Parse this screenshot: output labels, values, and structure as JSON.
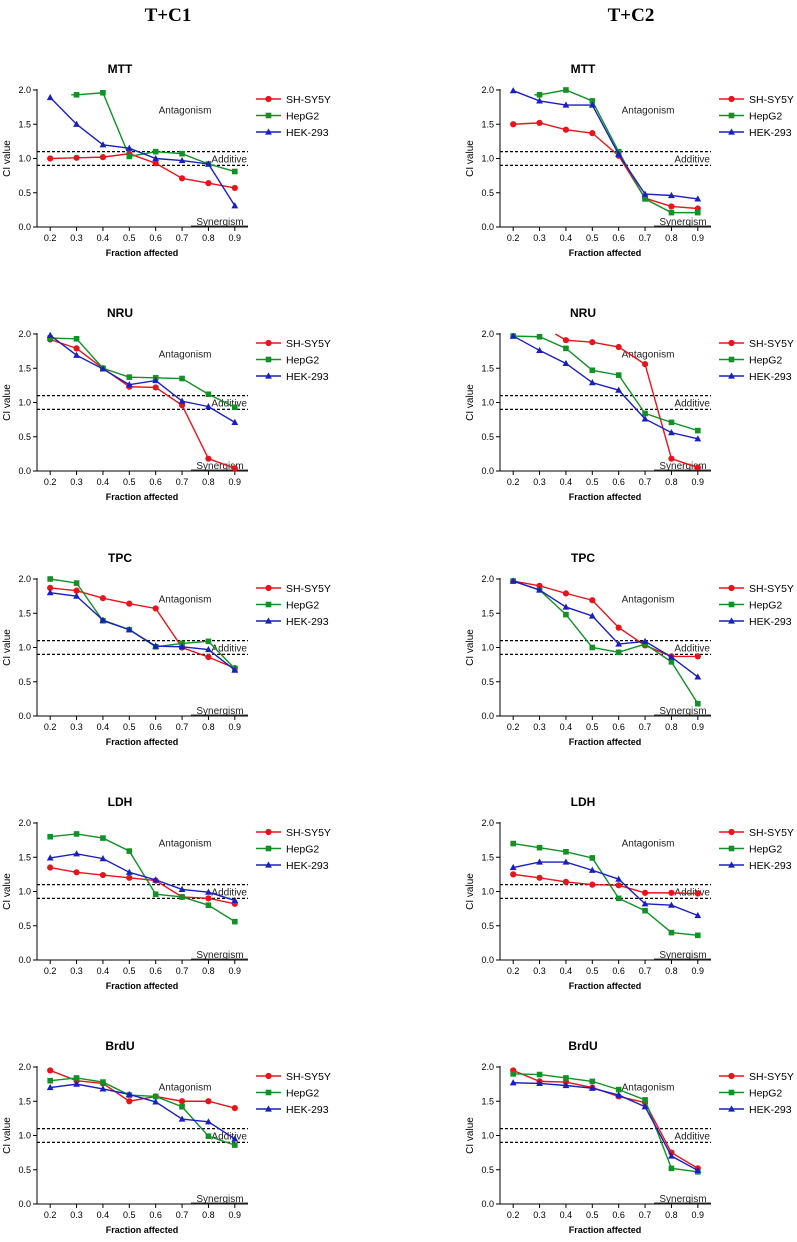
{
  "figure": {
    "columns": [
      "T+C1",
      "T+C2"
    ]
  },
  "colors": {
    "SH-SY5Y": "#e8141b",
    "HepG2": "#119126",
    "HEK-293": "#1a1fc2"
  },
  "markers": {
    "SH-SY5Y": "circle",
    "HepG2": "square",
    "HEK-293": "triangle"
  },
  "chart_data": [
    {
      "type": "line",
      "column": "T+C1",
      "title": "MTT",
      "xlabel": "Fraction affected",
      "ylabel": "CI value",
      "x": [
        0.2,
        0.3,
        0.4,
        0.5,
        0.6,
        0.7,
        0.8,
        0.9
      ],
      "xticks": [
        "0.2",
        "0.3",
        "0.4",
        "0.5",
        "0.6",
        "0.7",
        "0.8",
        "0.9"
      ],
      "ylim": [
        0,
        2.0
      ],
      "yticks": [
        "0.0",
        "0.5",
        "1.0",
        "1.5",
        "2.0"
      ],
      "reference_lines": [
        0.9,
        1.1
      ],
      "annotations": {
        "antagonism": "Antagonism",
        "additive": "Additive",
        "synergism": "Synergism"
      },
      "series": [
        {
          "name": "SH-SY5Y",
          "values": [
            1.0,
            1.01,
            1.02,
            1.07,
            0.93,
            0.71,
            0.64,
            0.57
          ]
        },
        {
          "name": "HepG2",
          "values": [
            null,
            1.93,
            1.96,
            1.03,
            1.1,
            1.07,
            0.92,
            0.81
          ],
          "x_start": 0.28
        },
        {
          "name": "HEK-293",
          "values": [
            1.89,
            1.5,
            1.2,
            1.15,
            1.0,
            0.97,
            0.92,
            0.31
          ]
        }
      ]
    },
    {
      "type": "line",
      "column": "T+C2",
      "title": "MTT",
      "xlabel": "Fraction affected",
      "ylabel": "CI value",
      "x": [
        0.2,
        0.3,
        0.4,
        0.5,
        0.6,
        0.7,
        0.8,
        0.9
      ],
      "xticks": [
        "0.2",
        "0.3",
        "0.4",
        "0.5",
        "0.6",
        "0.7",
        "0.8",
        "0.9"
      ],
      "ylim": [
        0,
        2.0
      ],
      "yticks": [
        "0.0",
        "0.5",
        "1.0",
        "1.5",
        "2.0"
      ],
      "reference_lines": [
        0.9,
        1.1
      ],
      "annotations": {
        "antagonism": "Antagonism",
        "additive": "Additive",
        "synergism": "Synergism"
      },
      "series": [
        {
          "name": "SH-SY5Y",
          "values": [
            1.5,
            1.52,
            1.42,
            1.37,
            1.04,
            0.42,
            0.3,
            0.27
          ]
        },
        {
          "name": "HepG2",
          "values": [
            null,
            1.93,
            2.0,
            1.84,
            1.1,
            0.41,
            0.21,
            0.21
          ],
          "x_start": 0.28
        },
        {
          "name": "HEK-293",
          "values": [
            1.99,
            1.84,
            1.78,
            1.78,
            1.06,
            0.48,
            0.46,
            0.41
          ]
        }
      ]
    },
    {
      "type": "line",
      "column": "T+C1",
      "title": "NRU",
      "xlabel": "Fraction affected",
      "ylabel": "CI value",
      "x": [
        0.2,
        0.3,
        0.4,
        0.5,
        0.6,
        0.7,
        0.8,
        0.9
      ],
      "xticks": [
        "0.2",
        "0.3",
        "0.4",
        "0.5",
        "0.6",
        "0.7",
        "0.8",
        "0.9"
      ],
      "ylim": [
        0,
        2.0
      ],
      "yticks": [
        "0.0",
        "0.5",
        "1.0",
        "1.5",
        "2.0"
      ],
      "reference_lines": [
        0.9,
        1.1
      ],
      "annotations": {
        "antagonism": "Antagonism",
        "additive": "Additive",
        "synergism": "Synergism"
      },
      "series": [
        {
          "name": "SH-SY5Y",
          "values": [
            1.92,
            1.79,
            1.5,
            1.23,
            1.22,
            0.96,
            0.18,
            0.04
          ]
        },
        {
          "name": "HepG2",
          "values": [
            1.94,
            1.93,
            1.5,
            1.37,
            1.36,
            1.35,
            1.12,
            0.93
          ]
        },
        {
          "name": "HEK-293",
          "values": [
            1.98,
            1.69,
            1.49,
            1.26,
            1.32,
            1.02,
            0.94,
            0.71
          ]
        }
      ]
    },
    {
      "type": "line",
      "column": "T+C2",
      "title": "NRU",
      "xlabel": "Fraction affected",
      "ylabel": "CI value",
      "x": [
        0.2,
        0.3,
        0.4,
        0.5,
        0.6,
        0.7,
        0.8,
        0.9
      ],
      "xticks": [
        "0.2",
        "0.3",
        "0.4",
        "0.5",
        "0.6",
        "0.7",
        "0.8",
        "0.9"
      ],
      "ylim": [
        0,
        2.0
      ],
      "yticks": [
        "0.0",
        "0.5",
        "1.0",
        "1.5",
        "2.0"
      ],
      "reference_lines": [
        0.9,
        1.1
      ],
      "annotations": {
        "antagonism": "Antagonism",
        "additive": "Additive",
        "synergism": "Synergism"
      },
      "series": [
        {
          "name": "SH-SY5Y",
          "values": [
            null,
            null,
            1.91,
            1.88,
            1.81,
            1.56,
            0.18,
            0.05
          ],
          "x_start": 0.36,
          "y_start": 2.0
        },
        {
          "name": "HepG2",
          "values": [
            1.97,
            1.96,
            1.79,
            1.47,
            1.4,
            0.84,
            0.71,
            0.59
          ]
        },
        {
          "name": "HEK-293",
          "values": [
            1.97,
            1.76,
            1.57,
            1.29,
            1.18,
            0.76,
            0.56,
            0.47
          ]
        }
      ]
    },
    {
      "type": "line",
      "column": "T+C1",
      "title": "TPC",
      "xlabel": "Fraction affected",
      "ylabel": "CI value",
      "x": [
        0.2,
        0.3,
        0.4,
        0.5,
        0.6,
        0.7,
        0.8,
        0.9
      ],
      "xticks": [
        "0.2",
        "0.3",
        "0.4",
        "0.5",
        "0.6",
        "0.7",
        "0.8",
        "0.9"
      ],
      "ylim": [
        0,
        2.0
      ],
      "yticks": [
        "0.0",
        "0.5",
        "1.0",
        "1.5",
        "2.0"
      ],
      "reference_lines": [
        0.9,
        1.1
      ],
      "annotations": {
        "antagonism": "Antagonism",
        "additive": "Additive",
        "synergism": "Synergism"
      },
      "series": [
        {
          "name": "SH-SY5Y",
          "values": [
            1.87,
            1.83,
            1.72,
            1.64,
            1.57,
            1.0,
            0.86,
            0.7
          ]
        },
        {
          "name": "HepG2",
          "values": [
            2.0,
            1.94,
            1.39,
            1.26,
            1.01,
            1.06,
            1.09,
            0.69
          ]
        },
        {
          "name": "HEK-293",
          "values": [
            1.8,
            1.75,
            1.4,
            1.26,
            1.02,
            1.01,
            0.97,
            0.67
          ]
        }
      ]
    },
    {
      "type": "line",
      "column": "T+C2",
      "title": "TPC",
      "xlabel": "Fraction affected",
      "ylabel": "CI value",
      "x": [
        0.2,
        0.3,
        0.4,
        0.5,
        0.6,
        0.7,
        0.8,
        0.9
      ],
      "xticks": [
        "0.2",
        "0.3",
        "0.4",
        "0.5",
        "0.6",
        "0.7",
        "0.8",
        "0.9"
      ],
      "ylim": [
        0,
        2.0
      ],
      "yticks": [
        "0.0",
        "0.5",
        "1.0",
        "1.5",
        "2.0"
      ],
      "reference_lines": [
        0.9,
        1.1
      ],
      "annotations": {
        "antagonism": "Antagonism",
        "additive": "Additive",
        "synergism": "Synergism"
      },
      "series": [
        {
          "name": "SH-SY5Y",
          "values": [
            1.97,
            1.9,
            1.79,
            1.69,
            1.29,
            1.03,
            0.87,
            0.87
          ]
        },
        {
          "name": "HepG2",
          "values": [
            1.97,
            1.84,
            1.48,
            1.0,
            0.93,
            1.05,
            0.79,
            0.18
          ]
        },
        {
          "name": "HEK-293",
          "values": [
            1.97,
            1.84,
            1.59,
            1.46,
            1.05,
            1.09,
            0.86,
            0.57
          ]
        }
      ]
    },
    {
      "type": "line",
      "column": "T+C1",
      "title": "LDH",
      "xlabel": "Fraction affected",
      "ylabel": "CI value",
      "x": [
        0.2,
        0.3,
        0.4,
        0.5,
        0.6,
        0.7,
        0.8,
        0.9
      ],
      "xticks": [
        "0.2",
        "0.3",
        "0.4",
        "0.5",
        "0.6",
        "0.7",
        "0.8",
        "0.9"
      ],
      "ylim": [
        0,
        2.0
      ],
      "yticks": [
        "0.0",
        "0.5",
        "1.0",
        "1.5",
        "2.0"
      ],
      "reference_lines": [
        0.9,
        1.1
      ],
      "annotations": {
        "antagonism": "Antagonism",
        "additive": "Additive",
        "synergism": "Synergism"
      },
      "series": [
        {
          "name": "SH-SY5Y",
          "values": [
            1.35,
            1.28,
            1.24,
            1.2,
            1.16,
            0.92,
            0.9,
            0.82
          ]
        },
        {
          "name": "HepG2",
          "values": [
            1.8,
            1.84,
            1.78,
            1.59,
            0.96,
            0.92,
            0.8,
            0.56
          ]
        },
        {
          "name": "HEK-293",
          "values": [
            1.49,
            1.55,
            1.48,
            1.28,
            1.17,
            1.03,
            0.99,
            0.87
          ]
        }
      ]
    },
    {
      "type": "line",
      "column": "T+C2",
      "title": "LDH",
      "xlabel": "Fraction affected",
      "ylabel": "CI value",
      "x": [
        0.2,
        0.3,
        0.4,
        0.5,
        0.6,
        0.7,
        0.8,
        0.9
      ],
      "xticks": [
        "0.2",
        "0.3",
        "0.4",
        "0.5",
        "0.6",
        "0.7",
        "0.8",
        "0.9"
      ],
      "ylim": [
        0,
        2.0
      ],
      "yticks": [
        "0.0",
        "0.5",
        "1.0",
        "1.5",
        "2.0"
      ],
      "reference_lines": [
        0.9,
        1.1
      ],
      "annotations": {
        "antagonism": "Antagonism",
        "additive": "Additive",
        "synergism": "Synergism"
      },
      "series": [
        {
          "name": "SH-SY5Y",
          "values": [
            1.25,
            1.2,
            1.14,
            1.1,
            1.09,
            0.98,
            0.98,
            0.97
          ]
        },
        {
          "name": "HepG2",
          "values": [
            1.7,
            1.64,
            1.58,
            1.49,
            0.9,
            0.72,
            0.4,
            0.36
          ]
        },
        {
          "name": "HEK-293",
          "values": [
            1.35,
            1.43,
            1.43,
            1.31,
            1.18,
            0.82,
            0.8,
            0.65
          ]
        }
      ]
    },
    {
      "type": "line",
      "column": "T+C1",
      "title": "BrdU",
      "xlabel": "Fraction affected",
      "ylabel": "CI value",
      "x": [
        0.2,
        0.3,
        0.4,
        0.5,
        0.6,
        0.7,
        0.8,
        0.9
      ],
      "xticks": [
        "0.2",
        "0.3",
        "0.4",
        "0.5",
        "0.6",
        "0.7",
        "0.8",
        "0.9"
      ],
      "ylim": [
        0,
        2.0
      ],
      "yticks": [
        "0.0",
        "0.5",
        "1.0",
        "1.5",
        "2.0"
      ],
      "reference_lines": [
        0.9,
        1.1
      ],
      "annotations": {
        "antagonism": "Antagonism",
        "additive": "Additive",
        "synergism": "Synergism"
      },
      "series": [
        {
          "name": "SH-SY5Y",
          "values": [
            1.95,
            1.8,
            1.76,
            1.5,
            1.57,
            1.5,
            1.5,
            1.4
          ]
        },
        {
          "name": "HepG2",
          "values": [
            1.8,
            1.84,
            1.78,
            1.59,
            1.57,
            1.42,
            0.99,
            0.86
          ]
        },
        {
          "name": "HEK-293",
          "values": [
            1.7,
            1.75,
            1.68,
            1.6,
            1.49,
            1.24,
            1.2,
            0.95
          ]
        }
      ]
    },
    {
      "type": "line",
      "column": "T+C2",
      "title": "BrdU",
      "xlabel": "Fraction affected",
      "ylabel": "CI value",
      "x": [
        0.2,
        0.3,
        0.4,
        0.5,
        0.6,
        0.7,
        0.8,
        0.9
      ],
      "xticks": [
        "0.2",
        "0.3",
        "0.4",
        "0.5",
        "0.6",
        "0.7",
        "0.8",
        "0.9"
      ],
      "ylim": [
        0,
        2.0
      ],
      "yticks": [
        "0.0",
        "0.5",
        "1.0",
        "1.5",
        "2.0"
      ],
      "reference_lines": [
        0.9,
        1.1
      ],
      "annotations": {
        "antagonism": "Antagonism",
        "additive": "Additive",
        "synergism": "Synergism"
      },
      "series": [
        {
          "name": "SH-SY5Y",
          "values": [
            1.95,
            1.79,
            1.78,
            1.7,
            1.57,
            1.48,
            0.75,
            0.52
          ]
        },
        {
          "name": "HepG2",
          "values": [
            1.9,
            1.89,
            1.84,
            1.79,
            1.67,
            1.52,
            0.52,
            0.47
          ]
        },
        {
          "name": "HEK-293",
          "values": [
            1.77,
            1.76,
            1.73,
            1.69,
            1.59,
            1.42,
            0.7,
            0.49
          ]
        }
      ]
    }
  ]
}
